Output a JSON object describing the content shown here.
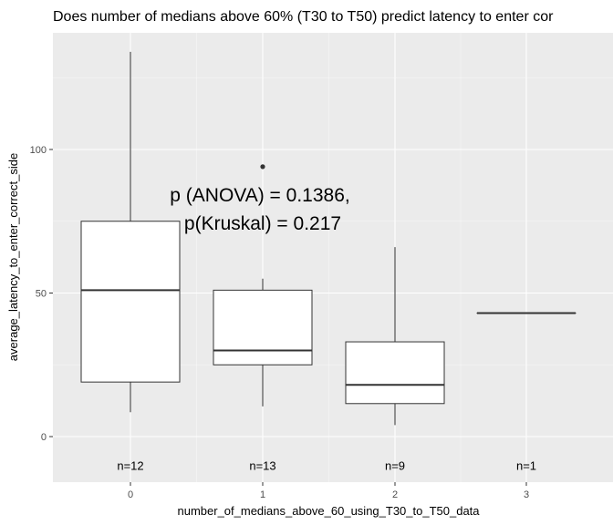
{
  "chart_data": {
    "type": "boxplot",
    "title": "Does number of medians above 60% (T30 to T50) predict latency to enter cor",
    "xlabel": "number_of_medians_above_60_using_T30_to_T50_data",
    "ylabel": "average_latency_to_enter_correct_side",
    "categories": [
      "0",
      "1",
      "2",
      "3"
    ],
    "ylim": [
      -16,
      137
    ],
    "y_ticks": [
      "0",
      "50",
      "100"
    ],
    "y_tick_values": [
      0,
      50,
      100
    ],
    "grid": true,
    "boxes": [
      {
        "category": "0",
        "min": 8.5,
        "q1": 19,
        "median": 51,
        "q3": 75,
        "max": 134,
        "outliers": []
      },
      {
        "category": "1",
        "min": 10.5,
        "q1": 25,
        "median": 30,
        "q3": 51,
        "max": 55,
        "outliers": [
          94
        ]
      },
      {
        "category": "2",
        "min": 4,
        "q1": 11.5,
        "median": 18,
        "q3": 33,
        "max": 66,
        "outliers": []
      },
      {
        "category": "3",
        "min": 43,
        "q1": 43,
        "median": 43,
        "q3": 43,
        "max": 43,
        "outliers": []
      }
    ],
    "n_labels": [
      "n=12",
      "n=13",
      "n=9",
      "n=1"
    ],
    "n_label_y": -10,
    "annotation": {
      "line1": "p (ANOVA) = 0.1386,",
      "line2": "p(Kruskal) = 0.217"
    },
    "colors": {
      "panel": "#ebebeb",
      "grid_major": "#ffffff",
      "box_fill": "#ffffff",
      "box_stroke": "#333333"
    }
  }
}
